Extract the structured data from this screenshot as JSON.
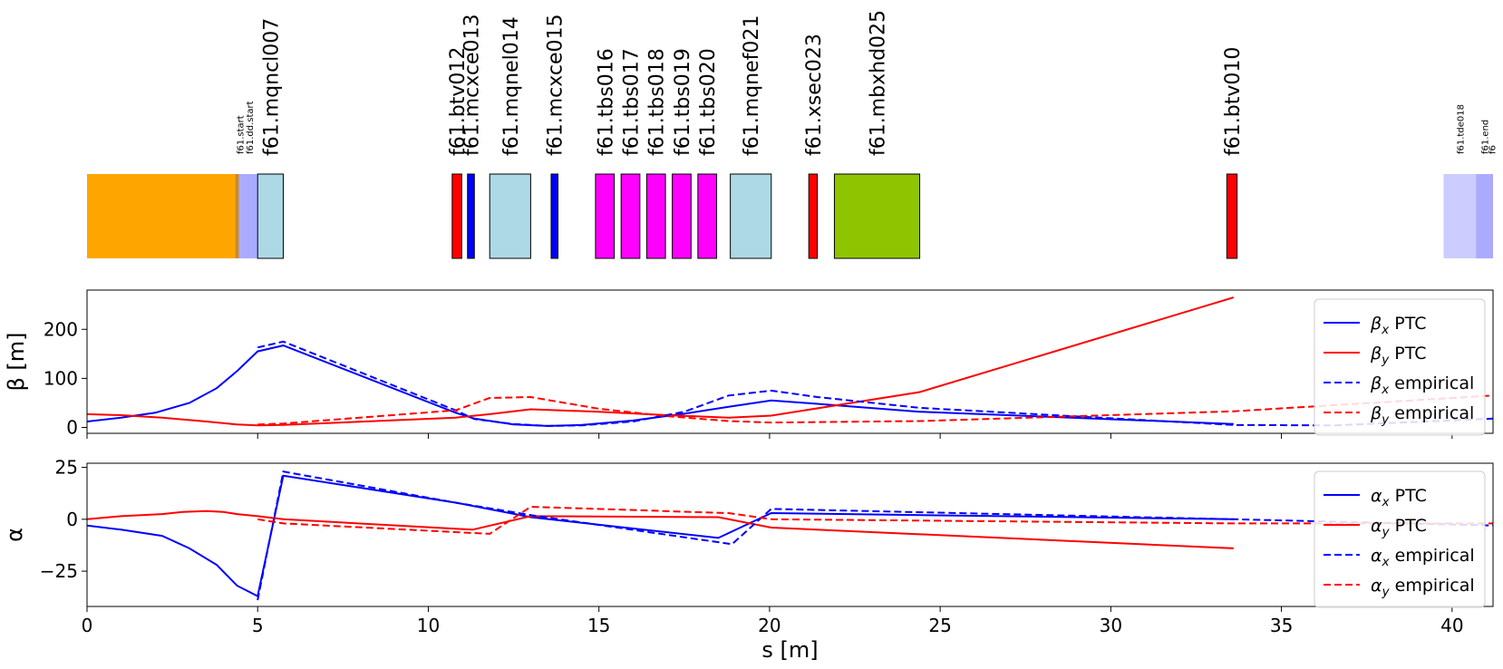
{
  "chart_data": [
    {
      "type": "layout",
      "elements": [
        {
          "name": "",
          "start": 0.0,
          "end": 4.4,
          "color": "#ffa500",
          "label_size": "none"
        },
        {
          "name": "",
          "start": 4.35,
          "end": 4.45,
          "color": "#c88a30",
          "label_size": "none"
        },
        {
          "name": "f61.start",
          "start": 4.45,
          "end": 4.5,
          "color": "#aaaaff",
          "label_size": "small"
        },
        {
          "name": "f61.dd.start",
          "start": 4.5,
          "end": 5.0,
          "color": "#aaaaff",
          "label_size": "small"
        },
        {
          "name": "f61.mqncl007",
          "start": 5.0,
          "end": 5.75,
          "color": "#add8e6",
          "label_size": "large"
        },
        {
          "name": "f61.btv012",
          "start": 10.7,
          "end": 10.98,
          "color": "#ff0000",
          "label_size": "large"
        },
        {
          "name": "f61.mcxce013",
          "start": 11.15,
          "end": 11.35,
          "color": "#0000ff",
          "label_size": "large"
        },
        {
          "name": "f61.mqnel014",
          "start": 11.8,
          "end": 13.0,
          "color": "#add8e6",
          "label_size": "large"
        },
        {
          "name": "f61.mcxce015",
          "start": 13.6,
          "end": 13.8,
          "color": "#0000ff",
          "label_size": "large"
        },
        {
          "name": "f61.tbs016",
          "start": 14.9,
          "end": 15.45,
          "color": "#ff00ff",
          "label_size": "large"
        },
        {
          "name": "f61.tbs017",
          "start": 15.65,
          "end": 16.2,
          "color": "#ff00ff",
          "label_size": "large"
        },
        {
          "name": "f61.tbs018",
          "start": 16.4,
          "end": 16.95,
          "color": "#ff00ff",
          "label_size": "large"
        },
        {
          "name": "f61.tbs019",
          "start": 17.15,
          "end": 17.7,
          "color": "#ff00ff",
          "label_size": "large"
        },
        {
          "name": "f61.tbs020",
          "start": 17.9,
          "end": 18.45,
          "color": "#ff00ff",
          "label_size": "large"
        },
        {
          "name": "f61.mqnef021",
          "start": 18.85,
          "end": 20.05,
          "color": "#add8e6",
          "label_size": "large"
        },
        {
          "name": "f61.xsec023",
          "start": 21.15,
          "end": 21.4,
          "color": "#ff0000",
          "label_size": "large"
        },
        {
          "name": "f61.mbxhd025",
          "start": 21.9,
          "end": 24.4,
          "color": "#8fc400",
          "label_size": "large"
        },
        {
          "name": "f61.btv010",
          "start": 33.4,
          "end": 33.7,
          "color": "#ff0000",
          "label_size": "large"
        },
        {
          "name": "f61.tde018",
          "start": 39.75,
          "end": 40.7,
          "color": "#ccccff",
          "label_size": "small"
        },
        {
          "name": "f61.end",
          "start": 40.7,
          "end": 41.2,
          "color": "#aaaaff",
          "label_size": "small"
        },
        {
          "name": "f6",
          "start": 41.12,
          "end": 41.2,
          "color": "#aaaaff",
          "label_size": "small"
        }
      ]
    },
    {
      "type": "line",
      "ylabel": "β [m]",
      "xlim": [
        0,
        41.2
      ],
      "ylim": [
        -12,
        280
      ],
      "yticks": [
        0,
        100,
        200
      ],
      "legend": "upper-right",
      "series": [
        {
          "name": "βx PTC",
          "color": "#0000ff",
          "dash": "solid",
          "x": [
            0,
            1.0,
            2.0,
            3.0,
            3.8,
            4.4,
            5.0,
            5.75,
            10.8,
            11.35,
            12.5,
            13.5,
            14.5,
            16.0,
            17.5,
            18.8,
            20.05,
            21.4,
            24.4,
            33.6
          ],
          "y": [
            12,
            20,
            30,
            50,
            80,
            115,
            155,
            167,
            30,
            18,
            6,
            3,
            5,
            14,
            28,
            42,
            55,
            48,
            32,
            7
          ]
        },
        {
          "name": "βy PTC",
          "color": "#ff0000",
          "dash": "solid",
          "x": [
            0,
            1.0,
            2.2,
            3.5,
            4.4,
            5.0,
            5.75,
            10.8,
            11.8,
            13.0,
            15.0,
            17.0,
            18.8,
            20.05,
            24.4,
            33.6
          ],
          "y": [
            27,
            25,
            20,
            12,
            6,
            4,
            5,
            20,
            27,
            37,
            32,
            25,
            20,
            24,
            72,
            265
          ]
        },
        {
          "name": "βx empirical",
          "color": "#0000ff",
          "dash": "dashed",
          "x": [
            5.0,
            5.75,
            10.8,
            11.35,
            12.5,
            13.5,
            14.5,
            16.0,
            17.5,
            18.8,
            20.05,
            21.4,
            24.4,
            33.6,
            36.5,
            41.2
          ],
          "y": [
            163,
            175,
            35,
            17,
            7,
            3,
            4,
            12,
            32,
            65,
            75,
            62,
            40,
            5,
            4,
            18
          ]
        },
        {
          "name": "βy empirical",
          "color": "#ff0000",
          "dash": "dashed",
          "x": [
            5.0,
            5.75,
            10.8,
            11.8,
            13.0,
            15.0,
            17.0,
            18.8,
            20.05,
            24.4,
            33.6,
            41.2
          ],
          "y": [
            6,
            8,
            35,
            60,
            62,
            38,
            23,
            13,
            10,
            13,
            33,
            65
          ]
        }
      ]
    },
    {
      "type": "line",
      "ylabel": "α",
      "xlabel": "s [m]",
      "xlim": [
        0,
        41.2
      ],
      "ylim": [
        -42,
        27
      ],
      "yticks": [
        -25,
        0,
        25
      ],
      "xticks": [
        0,
        5,
        10,
        15,
        20,
        25,
        30,
        35,
        40
      ],
      "legend": "upper-right",
      "series": [
        {
          "name": "αx PTC",
          "color": "#0000ff",
          "dash": "solid",
          "x": [
            0,
            1.0,
            2.2,
            3.0,
            3.8,
            4.4,
            5.0,
            5.75,
            10.8,
            13.0,
            18.5,
            20.05,
            33.6
          ],
          "y": [
            -3,
            -5,
            -8,
            -14,
            -22,
            -32,
            -37,
            21,
            8,
            1,
            -9,
            3,
            0
          ]
        },
        {
          "name": "αy PTC",
          "color": "#ff0000",
          "dash": "solid",
          "x": [
            0,
            1.0,
            2.2,
            2.8,
            3.5,
            4.0,
            4.4,
            5.0,
            5.75,
            11.3,
            13.0,
            18.5,
            20.05,
            33.6
          ],
          "y": [
            0,
            1.5,
            2.5,
            3.5,
            4,
            3.5,
            2.5,
            1.5,
            0,
            -5,
            1.5,
            1,
            -4,
            -14
          ]
        },
        {
          "name": "αx empirical",
          "color": "#0000ff",
          "dash": "dashed",
          "x": [
            5.0,
            5.75,
            10.8,
            13.0,
            18.9,
            20.05,
            33.6,
            41.2
          ],
          "y": [
            -39,
            23,
            8,
            2,
            -12,
            5,
            0,
            -3
          ]
        },
        {
          "name": "αy empirical",
          "color": "#ff0000",
          "dash": "dashed",
          "x": [
            5.0,
            5.75,
            11.8,
            13.0,
            18.8,
            20.05,
            33.6,
            41.2
          ],
          "y": [
            0,
            -2,
            -7,
            6,
            3,
            0,
            -2,
            -2
          ]
        }
      ]
    }
  ]
}
